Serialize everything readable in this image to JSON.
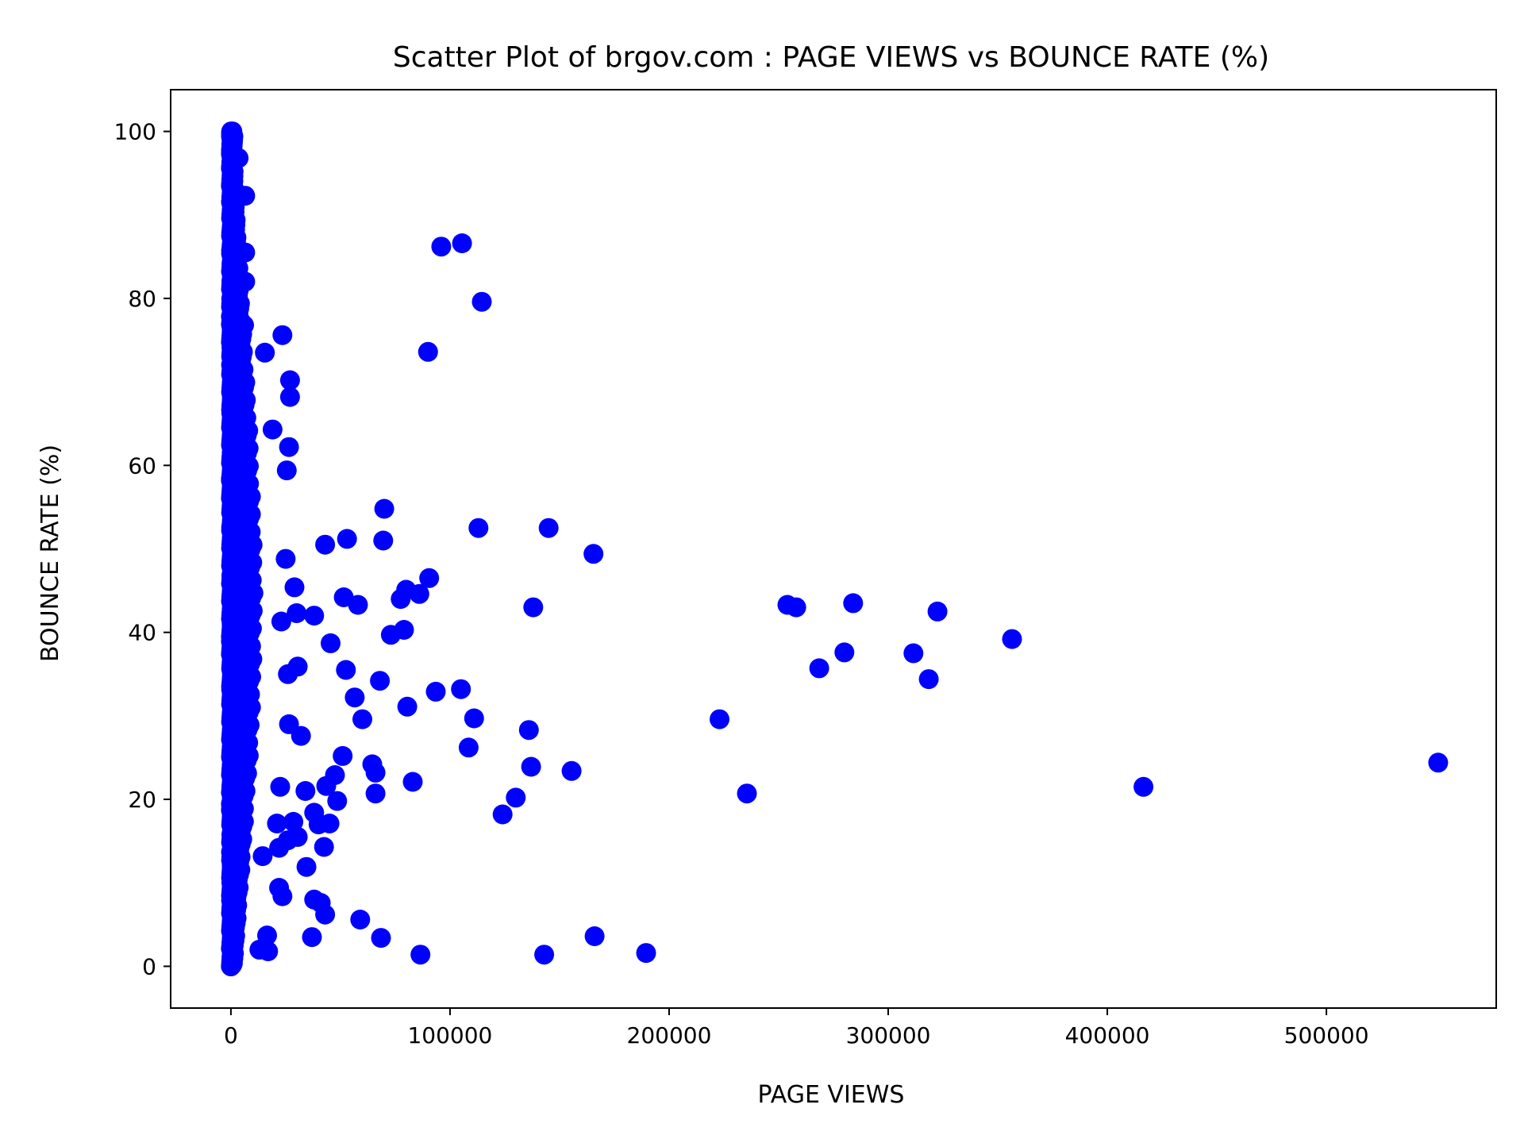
{
  "chart_data": {
    "type": "scatter",
    "title": "Scatter Plot of brgov.com : PAGE VIEWS vs BOUNCE RATE (%)",
    "xlabel": "PAGE VIEWS",
    "ylabel": "BOUNCE RATE (%)",
    "xlim": [
      -27500,
      577500
    ],
    "ylim": [
      -5,
      105
    ],
    "xticks": [
      0,
      100000,
      200000,
      300000,
      400000,
      500000
    ],
    "yticks": [
      0,
      20,
      40,
      60,
      80,
      100
    ],
    "grid": false,
    "legend": "none",
    "marker_color": "#0000ff",
    "series": [
      {
        "points": [
          [
            96000,
            86.2
          ],
          [
            105500,
            86.6
          ],
          [
            114500,
            79.6
          ],
          [
            90000,
            73.6
          ],
          [
            23500,
            75.6
          ],
          [
            15500,
            73.5
          ],
          [
            27000,
            70.2
          ],
          [
            27000,
            68.2
          ],
          [
            19000,
            64.3
          ],
          [
            26500,
            62.2
          ],
          [
            25500,
            59.4
          ],
          [
            6500,
            92.3
          ],
          [
            3500,
            96.8
          ],
          [
            6500,
            85.5
          ],
          [
            6500,
            82.0
          ],
          [
            6000,
            76.8
          ],
          [
            70000,
            54.8
          ],
          [
            113000,
            52.5
          ],
          [
            145000,
            52.5
          ],
          [
            165500,
            49.4
          ],
          [
            69500,
            51.0
          ],
          [
            53000,
            51.2
          ],
          [
            43000,
            50.5
          ],
          [
            90500,
            46.5
          ],
          [
            25000,
            48.8
          ],
          [
            29000,
            45.4
          ],
          [
            51500,
            44.2
          ],
          [
            58000,
            43.3
          ],
          [
            77500,
            44.0
          ],
          [
            80000,
            45.1
          ],
          [
            86000,
            44.6
          ],
          [
            138000,
            43.0
          ],
          [
            30000,
            42.3
          ],
          [
            38000,
            42.0
          ],
          [
            23000,
            41.3
          ],
          [
            73000,
            39.7
          ],
          [
            79000,
            40.3
          ],
          [
            45500,
            38.7
          ],
          [
            52500,
            35.5
          ],
          [
            68000,
            34.2
          ],
          [
            30500,
            35.9
          ],
          [
            26000,
            35.0
          ],
          [
            56500,
            32.2
          ],
          [
            60000,
            29.6
          ],
          [
            80500,
            31.1
          ],
          [
            93500,
            32.9
          ],
          [
            105000,
            33.2
          ],
          [
            111000,
            29.7
          ],
          [
            136000,
            28.3
          ],
          [
            108500,
            26.2
          ],
          [
            137000,
            23.9
          ],
          [
            155500,
            23.4
          ],
          [
            26500,
            29.0
          ],
          [
            32000,
            27.6
          ],
          [
            51000,
            25.2
          ],
          [
            64500,
            24.2
          ],
          [
            66000,
            23.2
          ],
          [
            47500,
            22.9
          ],
          [
            43500,
            21.6
          ],
          [
            22500,
            21.5
          ],
          [
            34000,
            21.0
          ],
          [
            48500,
            19.8
          ],
          [
            66000,
            20.7
          ],
          [
            83000,
            22.1
          ],
          [
            130000,
            20.2
          ],
          [
            124000,
            18.2
          ],
          [
            38000,
            18.4
          ],
          [
            45000,
            17.1
          ],
          [
            40000,
            17.0
          ],
          [
            28500,
            17.3
          ],
          [
            21000,
            17.1
          ],
          [
            30500,
            15.5
          ],
          [
            26000,
            15.1
          ],
          [
            22000,
            14.2
          ],
          [
            42500,
            14.3
          ],
          [
            34500,
            11.9
          ],
          [
            22000,
            9.4
          ],
          [
            23500,
            8.4
          ],
          [
            38000,
            8.0
          ],
          [
            41000,
            7.6
          ],
          [
            43000,
            6.2
          ],
          [
            59000,
            5.6
          ],
          [
            37000,
            3.5
          ],
          [
            68500,
            3.4
          ],
          [
            86500,
            1.4
          ],
          [
            143000,
            1.4
          ],
          [
            166000,
            3.6
          ],
          [
            189500,
            1.6
          ],
          [
            17000,
            1.8
          ],
          [
            16500,
            3.7
          ],
          [
            13000,
            2.0
          ],
          [
            14500,
            13.2
          ],
          [
            223000,
            29.6
          ],
          [
            235500,
            20.7
          ],
          [
            254000,
            43.3
          ],
          [
            258000,
            43.0
          ],
          [
            268500,
            35.7
          ],
          [
            280000,
            37.6
          ],
          [
            284000,
            43.5
          ],
          [
            311500,
            37.5
          ],
          [
            318500,
            34.4
          ],
          [
            322500,
            42.5
          ],
          [
            356500,
            39.2
          ],
          [
            416500,
            21.5
          ],
          [
            551000,
            24.4
          ]
        ]
      }
    ]
  }
}
